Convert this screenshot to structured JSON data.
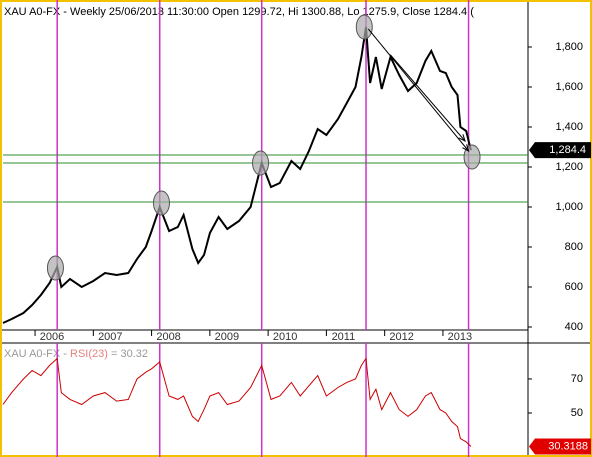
{
  "chart_data": [
    {
      "type": "line",
      "title": "XAU A0-FX - Weekly 25/06/2013 11:30:00 Open 1299.72, Hi 1300.88, Lo 1275.9, Close 1284.4 (",
      "x": [
        2005.45,
        2005.6,
        2005.8,
        2005.95,
        2006.1,
        2006.25,
        2006.38,
        2006.45,
        2006.6,
        2006.8,
        2007.0,
        2007.2,
        2007.4,
        2007.6,
        2007.75,
        2007.9,
        2008.0,
        2008.14,
        2008.3,
        2008.45,
        2008.55,
        2008.7,
        2008.8,
        2008.9,
        2009.0,
        2009.15,
        2009.3,
        2009.5,
        2009.7,
        2009.89,
        2010.05,
        2010.2,
        2010.4,
        2010.55,
        2010.7,
        2010.85,
        2011.0,
        2011.2,
        2011.35,
        2011.5,
        2011.6,
        2011.68,
        2011.75,
        2011.85,
        2011.95,
        2012.1,
        2012.25,
        2012.4,
        2012.55,
        2012.7,
        2012.8,
        2012.95,
        2013.05,
        2013.15,
        2013.25,
        2013.3,
        2013.4,
        2013.48
      ],
      "series": [
        {
          "name": "XAU A0-FX",
          "color": "#000000",
          "values": [
            420,
            440,
            470,
            510,
            560,
            620,
            700,
            600,
            640,
            600,
            630,
            670,
            660,
            670,
            740,
            800,
            880,
            1000,
            880,
            900,
            960,
            790,
            720,
            760,
            870,
            950,
            890,
            930,
            1000,
            1220,
            1100,
            1120,
            1230,
            1190,
            1280,
            1390,
            1360,
            1440,
            1520,
            1600,
            1750,
            1900,
            1620,
            1750,
            1590,
            1750,
            1660,
            1580,
            1620,
            1730,
            1780,
            1680,
            1670,
            1600,
            1560,
            1400,
            1380,
            1284.4
          ]
        }
      ],
      "last_marker": {
        "value": 1284.4,
        "label": "1,284.4"
      },
      "xlim": [
        2005.45,
        2014.46
      ],
      "xticks": [
        2006,
        2007,
        2008,
        2009,
        2010,
        2011,
        2012,
        2013
      ],
      "ylim": [
        385,
        2010
      ],
      "yticks": [
        400,
        600,
        800,
        {
          "value": 1000,
          "label": "1,000"
        },
        {
          "value": 1200,
          "label": "1,200"
        },
        {
          "value": 1400,
          "label": "1,400"
        },
        {
          "value": 1600,
          "label": "1,600"
        },
        {
          "value": 1800,
          "label": "1,800"
        }
      ],
      "vlines": [
        2006.38,
        2008.14,
        2009.89,
        2011.68,
        2013.44
      ],
      "vline_color": "#cc33cc",
      "hlines": [
        1260,
        1220,
        1025
      ],
      "hline_color": "#2e8b2e",
      "circles": [
        {
          "x": 2006.35,
          "y": 695
        },
        {
          "x": 2008.17,
          "y": 1020
        },
        {
          "x": 2009.87,
          "y": 1220
        },
        {
          "x": 2011.65,
          "y": 1900
        },
        {
          "x": 2013.5,
          "y": 1250
        }
      ],
      "arrows": [
        {
          "x": [
            2011.72,
            2013.44
          ],
          "y": [
            1890,
            1280
          ]
        },
        {
          "x": [
            2012.1,
            2013.38
          ],
          "y": [
            1760,
            1330
          ]
        }
      ]
    },
    {
      "type": "line",
      "title": [
        "XAU A0-FX - ",
        "RSI(23)",
        " = 30.32"
      ],
      "title_colors": [
        "#999999",
        "#e88080",
        "#999999"
      ],
      "x": [
        2005.45,
        2005.6,
        2005.8,
        2005.95,
        2006.1,
        2006.25,
        2006.38,
        2006.45,
        2006.6,
        2006.8,
        2007.0,
        2007.2,
        2007.4,
        2007.6,
        2007.75,
        2007.9,
        2008.0,
        2008.14,
        2008.3,
        2008.45,
        2008.55,
        2008.7,
        2008.8,
        2008.9,
        2009.0,
        2009.15,
        2009.3,
        2009.5,
        2009.7,
        2009.89,
        2010.05,
        2010.2,
        2010.4,
        2010.55,
        2010.7,
        2010.85,
        2011.0,
        2011.2,
        2011.35,
        2011.5,
        2011.6,
        2011.68,
        2011.75,
        2011.85,
        2011.95,
        2012.1,
        2012.25,
        2012.4,
        2012.55,
        2012.7,
        2012.8,
        2012.95,
        2013.05,
        2013.15,
        2013.25,
        2013.3,
        2013.4,
        2013.48
      ],
      "series": [
        {
          "name": "RSI(23)",
          "color": "#cc0000",
          "values": [
            55,
            62,
            70,
            75,
            72,
            78,
            82,
            62,
            58,
            55,
            60,
            62,
            57,
            58,
            70,
            74,
            76,
            80,
            60,
            58,
            60,
            48,
            45,
            52,
            60,
            62,
            55,
            57,
            65,
            78,
            58,
            60,
            68,
            60,
            66,
            72,
            60,
            65,
            68,
            70,
            78,
            82,
            58,
            64,
            52,
            62,
            52,
            48,
            52,
            60,
            62,
            52,
            50,
            45,
            42,
            35,
            33,
            30.3188
          ]
        }
      ],
      "xlim": [
        2005.45,
        2014.46
      ],
      "ylim": [
        25.3,
        88.2
      ],
      "yticks": [
        50,
        70
      ]
    }
  ]
}
